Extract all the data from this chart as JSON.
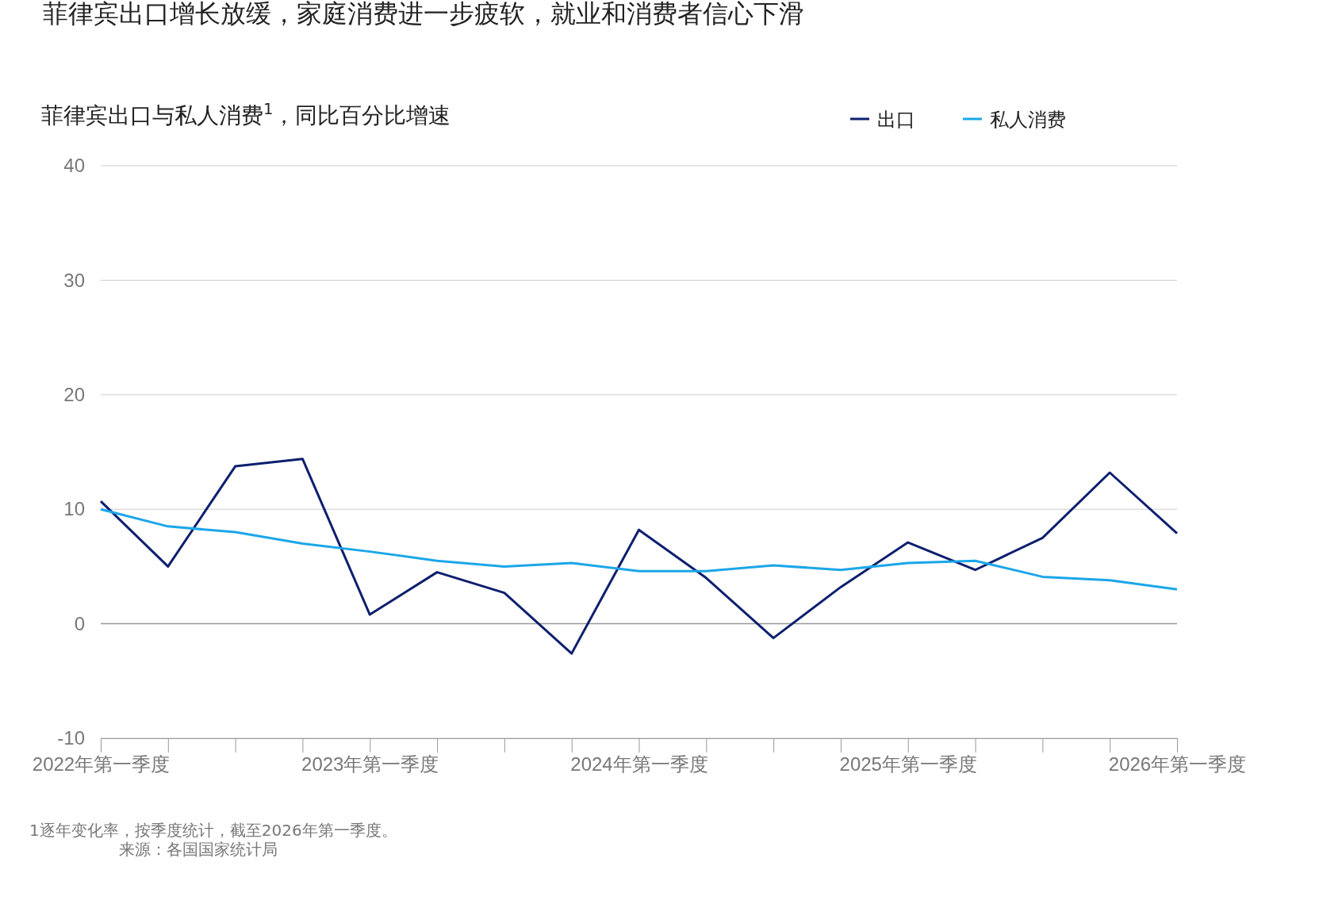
{
  "chart_data": {
    "type": "line",
    "title": "菲律宾出口增长放缓，家庭消费进一步疲软，就业和消费者信心下滑",
    "subtitle": "菲律宾出口与私人消费$^{1}$，同比百分比增速",
    "categories": [
      "2022年第一季度",
      null,
      null,
      null,
      "2023年第一季度",
      null,
      null,
      null,
      "2024年第一季度",
      null,
      null,
      null,
      "2025年第一季度",
      null,
      null,
      null,
      "2026年第一季度"
    ],
    "series": [
      {
        "name": "出口",
        "color": "#0e1f6e",
        "values": [
          10.7,
          5.0,
          13.75,
          14.4,
          0.8,
          4.5,
          2.7,
          -2.6,
          8.2,
          4.0,
          -1.25,
          3.2,
          7.1,
          4.7,
          7.5,
          13.2,
          7.9
        ]
      },
      {
        "name": "私人消费",
        "color": "#1ba6e8",
        "values": [
          10.0,
          8.5,
          8.0,
          7.0,
          6.3,
          5.5,
          5.0,
          5.3,
          4.6,
          4.6,
          5.1,
          4.7,
          5.3,
          5.5,
          4.1,
          3.8,
          3.0
        ]
      }
    ],
    "ylim": [
      -10,
      40
    ],
    "yticks": [
      -10,
      0,
      10,
      20,
      30,
      40
    ],
    "grid": "y",
    "legend": "top right",
    "marker": "none",
    "line_style": "solid",
    "annotations": [
      "1逐年变化率，按季度统计，截至2026年第一季度。",
      "来源：各国国家统计局"
    ]
  }
}
